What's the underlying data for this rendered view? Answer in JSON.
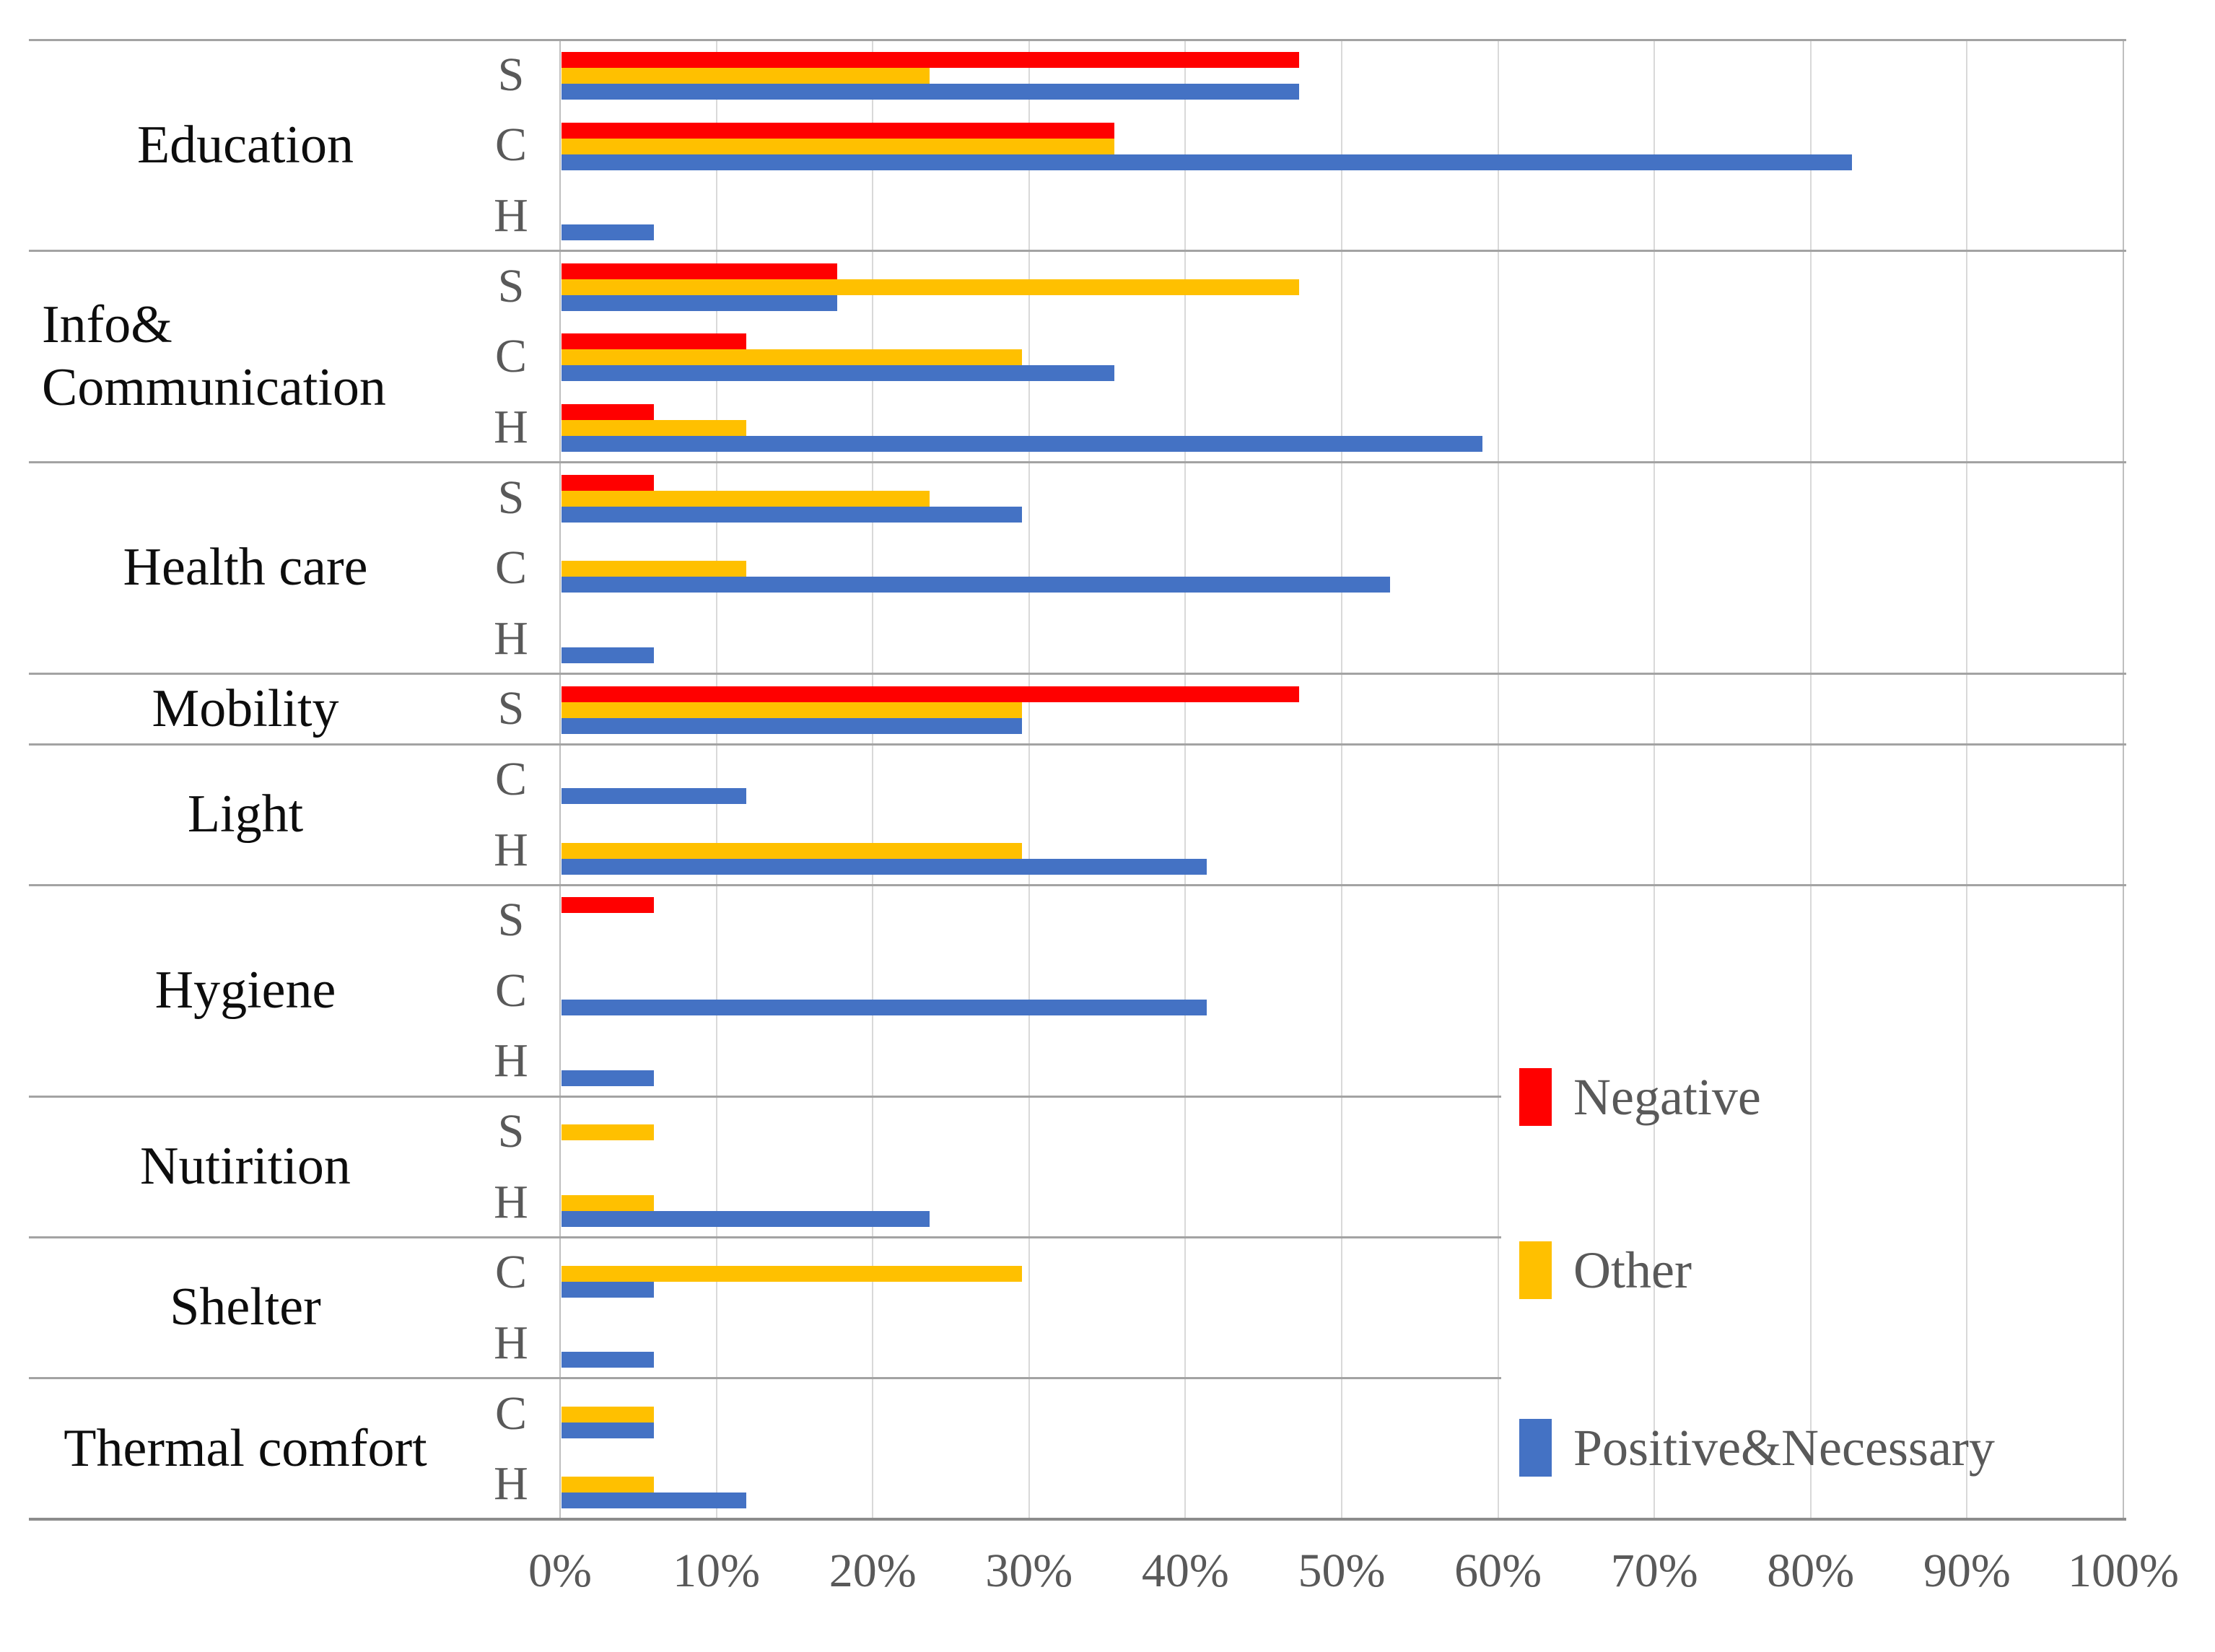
{
  "chart_data": {
    "type": "bar",
    "orientation": "horizontal",
    "title": "",
    "xlabel": "",
    "ylabel": "",
    "value_axis": {
      "min": 0,
      "max": 100,
      "unit": "percent",
      "tick_labels": [
        "0%",
        "10%",
        "20%",
        "30%",
        "40%",
        "50%",
        "60%",
        "70%",
        "80%",
        "90%",
        "100%"
      ],
      "grid": true
    },
    "series": [
      {
        "name": "Negative",
        "color": "#FF0000"
      },
      {
        "name": "Other",
        "color": "#FFC000"
      },
      {
        "name": "Positive&Necessary",
        "color": "#4472C4"
      }
    ],
    "legend_position": "right-middle",
    "groups": [
      {
        "label": "Education",
        "rows": [
          {
            "sub": "S",
            "values": [
              47.1,
              23.5,
              47.1
            ]
          },
          {
            "sub": "C",
            "values": [
              35.3,
              35.3,
              82.4
            ]
          },
          {
            "sub": "H",
            "values": [
              0,
              0,
              5.9
            ]
          }
        ]
      },
      {
        "label": "Info&\nCommunication",
        "rows": [
          {
            "sub": "S",
            "values": [
              17.6,
              47.1,
              17.6
            ]
          },
          {
            "sub": "C",
            "values": [
              11.8,
              29.4,
              35.3
            ]
          },
          {
            "sub": "H",
            "values": [
              5.9,
              11.8,
              58.8
            ]
          }
        ]
      },
      {
        "label": "Health care",
        "rows": [
          {
            "sub": "S",
            "values": [
              5.9,
              23.5,
              29.4
            ]
          },
          {
            "sub": "C",
            "values": [
              0,
              11.8,
              52.9
            ]
          },
          {
            "sub": "H",
            "values": [
              0,
              0,
              5.9
            ]
          }
        ]
      },
      {
        "label": "Mobility",
        "rows": [
          {
            "sub": "S",
            "values": [
              47.1,
              29.4,
              29.4
            ]
          }
        ]
      },
      {
        "label": "Light",
        "rows": [
          {
            "sub": "C",
            "values": [
              0,
              0,
              11.8
            ]
          },
          {
            "sub": "H",
            "values": [
              0,
              29.4,
              41.2
            ]
          }
        ]
      },
      {
        "label": "Hygiene",
        "rows": [
          {
            "sub": "S",
            "values": [
              5.9,
              0,
              0
            ]
          },
          {
            "sub": "C",
            "values": [
              0,
              0,
              41.2
            ]
          },
          {
            "sub": "H",
            "values": [
              0,
              0,
              5.9
            ]
          }
        ]
      },
      {
        "label": "Nutirition",
        "rows": [
          {
            "sub": "S",
            "values": [
              0,
              5.9,
              0
            ]
          },
          {
            "sub": "H",
            "values": [
              0,
              5.9,
              23.5
            ]
          }
        ]
      },
      {
        "label": "Shelter",
        "rows": [
          {
            "sub": "C",
            "values": [
              0,
              29.4,
              5.9
            ]
          },
          {
            "sub": "H",
            "values": [
              0,
              0,
              5.9
            ]
          }
        ]
      },
      {
        "label": "Thermal comfort",
        "rows": [
          {
            "sub": "C",
            "values": [
              0,
              5.9,
              5.9
            ]
          },
          {
            "sub": "H",
            "values": [
              0,
              5.9,
              11.8
            ]
          }
        ]
      }
    ]
  },
  "colors": {
    "background": "#FFFFFF",
    "gridline": "#D9D9D9",
    "plot_border": "#BFBFBF",
    "divider": "#A3A3A3",
    "axis_line": "#8C8C8C",
    "axis_text": "#595959",
    "sub_text": "#595959",
    "category_text": "#0D0D0D"
  }
}
